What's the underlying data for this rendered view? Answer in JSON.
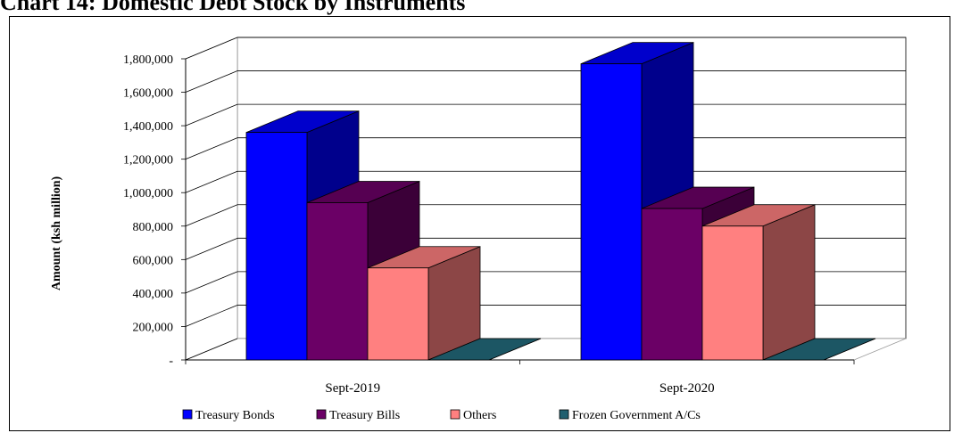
{
  "chart_data": {
    "type": "bar",
    "title": "Chart 14: Domestic Debt Stock by Instruments",
    "ylabel": "Amount  (ksh million)",
    "categories": [
      "Sept-2019",
      "Sept-2020"
    ],
    "series": [
      {
        "name": "Treasury Bonds",
        "values": [
          1360000,
          1770000
        ],
        "color": "#0000FF"
      },
      {
        "name": "Treasury Bills",
        "values": [
          940000,
          905000
        ],
        "color": "#6B0066"
      },
      {
        "name": "Others",
        "values": [
          550000,
          800000
        ],
        "color": "#FF8080"
      },
      {
        "name": "Frozen Government A/Cs",
        "values": [
          0,
          0
        ],
        "color": "#1F5F6F"
      }
    ],
    "yticks": [
      0,
      200000,
      400000,
      600000,
      800000,
      1000000,
      1200000,
      1400000,
      1600000,
      1800000
    ],
    "ytick_labels": [
      "-",
      "200,000",
      "400,000",
      "600,000",
      "800,000",
      "1,000,000",
      "1,200,000",
      "1,400,000",
      "1,600,000",
      "1,800,000"
    ],
    "ylim": [
      0,
      1800000
    ],
    "grid": true,
    "legend_position": "bottom"
  }
}
